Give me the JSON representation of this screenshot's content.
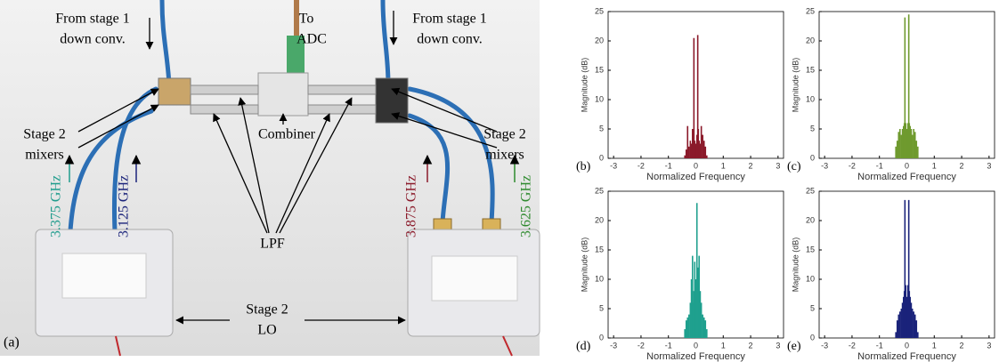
{
  "photo": {
    "panel_label": "(a)",
    "from_stage_left": [
      "From stage 1",
      "down conv."
    ],
    "to_adc": [
      "To",
      "ADC"
    ],
    "from_stage_right": [
      "From stage 1",
      "down conv."
    ],
    "mixers_left": [
      "Stage 2",
      "mixers"
    ],
    "mixers_right": [
      "Stage 2",
      "mixers"
    ],
    "combiner": "Combiner",
    "lpf": "LPF",
    "lo": [
      "Stage 2",
      "LO"
    ],
    "freqs": [
      "3.375 GHz",
      "3.125 GHz",
      "3.875 GHz",
      "3.625 GHz"
    ]
  },
  "chart_data": [
    {
      "type": "stem",
      "panel_label": "(b)",
      "xlabel": "Normalized Frequency",
      "ylabel": "Magnitude (dB)",
      "color": "#8b1a2a",
      "xlim": [
        -3.2,
        3.2
      ],
      "ylim": [
        0,
        25
      ],
      "xticks": [
        -3,
        -2,
        -1,
        0,
        1,
        2,
        3
      ],
      "yticks": [
        0,
        5,
        10,
        15,
        20,
        25
      ],
      "x": [
        -0.4,
        -0.35,
        -0.3,
        -0.25,
        -0.2,
        -0.16,
        -0.12,
        -0.09,
        -0.07,
        -0.04,
        -0.02,
        0,
        0.02,
        0.04,
        0.07,
        0.09,
        0.12,
        0.16,
        0.2,
        0.25,
        0.3,
        0.35,
        0.4
      ],
      "values": [
        0.5,
        1.5,
        5.5,
        2,
        3,
        2.5,
        5,
        3,
        20.5,
        3,
        2,
        2.5,
        2,
        4,
        21,
        5,
        3,
        2.5,
        5.5,
        4,
        3,
        2,
        0.5
      ]
    },
    {
      "type": "stem",
      "panel_label": "(c)",
      "xlabel": "Normalized Frequency",
      "ylabel": "Magnitude (dB)",
      "color": "#6f9a2e",
      "xlim": [
        -3.2,
        3.2
      ],
      "ylim": [
        0,
        25
      ],
      "xticks": [
        -3,
        -2,
        -1,
        0,
        1,
        2,
        3
      ],
      "yticks": [
        0,
        5,
        10,
        15,
        20,
        25
      ],
      "x": [
        -0.4,
        -0.35,
        -0.3,
        -0.25,
        -0.2,
        -0.16,
        -0.12,
        -0.09,
        -0.07,
        -0.04,
        -0.02,
        0,
        0.02,
        0.04,
        0.07,
        0.09,
        0.12,
        0.16,
        0.2,
        0.25,
        0.3,
        0.35,
        0.4
      ],
      "values": [
        2,
        3,
        4.5,
        5,
        4,
        5,
        5.5,
        6,
        24,
        6,
        5,
        4.5,
        5,
        6,
        24.5,
        6,
        5.5,
        5,
        4,
        5,
        4.5,
        3,
        2
      ]
    },
    {
      "type": "stem",
      "panel_label": "(d)",
      "xlabel": "Normalized Frequency",
      "ylabel": "Magnitude (dB)",
      "color": "#1fa08e",
      "xlim": [
        -3.2,
        3.2
      ],
      "ylim": [
        0,
        25
      ],
      "xticks": [
        -3,
        -2,
        -1,
        0,
        1,
        2,
        3
      ],
      "yticks": [
        0,
        5,
        10,
        15,
        20,
        25
      ],
      "x": [
        -0.4,
        -0.35,
        -0.3,
        -0.25,
        -0.2,
        -0.16,
        -0.12,
        -0.09,
        -0.07,
        -0.04,
        -0.02,
        0,
        0.02,
        0.04,
        0.07,
        0.09,
        0.12,
        0.16,
        0.2,
        0.25,
        0.3,
        0.35,
        0.4
      ],
      "values": [
        1.5,
        3,
        3.5,
        4,
        6,
        10,
        14,
        6,
        8,
        13,
        5,
        10,
        6,
        23,
        7,
        12,
        14,
        8,
        6,
        4,
        3.5,
        3,
        1.5
      ]
    },
    {
      "type": "stem",
      "panel_label": "(e)",
      "xlabel": "Normalized Frequency",
      "ylabel": "Magnitude (dB)",
      "color": "#1a237a",
      "xlim": [
        -3.2,
        3.2
      ],
      "ylim": [
        0,
        25
      ],
      "xticks": [
        -3,
        -2,
        -1,
        0,
        1,
        2,
        3
      ],
      "yticks": [
        0,
        5,
        10,
        15,
        20,
        25
      ],
      "x": [
        -0.4,
        -0.35,
        -0.3,
        -0.25,
        -0.2,
        -0.16,
        -0.12,
        -0.09,
        -0.07,
        -0.04,
        -0.02,
        0,
        0.02,
        0.04,
        0.07,
        0.09,
        0.12,
        0.16,
        0.2,
        0.25,
        0.3,
        0.35,
        0.4
      ],
      "values": [
        1,
        3,
        4,
        4.5,
        5,
        6,
        7,
        8,
        23.5,
        9,
        7,
        6,
        7,
        9,
        23.5,
        8,
        7,
        6,
        5,
        4.5,
        4,
        3,
        1
      ]
    }
  ]
}
